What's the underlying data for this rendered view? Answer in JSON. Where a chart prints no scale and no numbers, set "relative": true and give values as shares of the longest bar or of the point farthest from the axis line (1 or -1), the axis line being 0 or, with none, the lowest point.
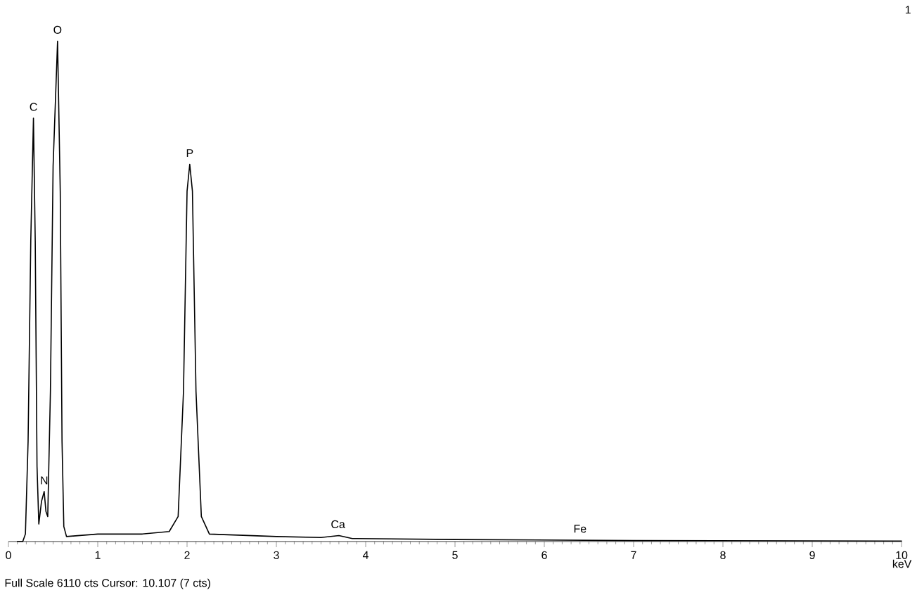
{
  "chart_data": {
    "type": "line",
    "xlabel": "keV",
    "relative": true,
    "grid": false,
    "marker": "none",
    "line_style": "solid",
    "xlim": [
      0,
      10
    ],
    "xticks": [
      0,
      1,
      2,
      3,
      4,
      5,
      6,
      7,
      8,
      9,
      10
    ],
    "x": [
      0.1,
      0.16,
      0.19,
      0.22,
      0.25,
      0.28,
      0.3,
      0.32,
      0.34,
      0.37,
      0.4,
      0.42,
      0.44,
      0.47,
      0.5,
      0.55,
      0.58,
      0.6,
      0.62,
      0.65,
      1.0,
      1.5,
      1.8,
      1.9,
      1.96,
      2.0,
      2.03,
      2.06,
      2.1,
      2.16,
      2.25,
      3.0,
      3.5,
      3.7,
      3.85,
      5.0,
      7.0,
      10.0
    ],
    "series": [
      {
        "color": "#000000",
        "values": [
          0,
          0,
          0.015,
          0.2,
          0.6,
          0.846,
          0.6,
          0.15,
          0.035,
          0.08,
          0.1,
          0.06,
          0.05,
          0.3,
          0.75,
          1,
          0.7,
          0.2,
          0.03,
          0.01,
          0.015,
          0.015,
          0.02,
          0.05,
          0.3,
          0.7,
          0.754,
          0.7,
          0.3,
          0.05,
          0.015,
          0.01,
          0.008,
          0.012,
          0.006,
          0.004,
          0.002,
          0.001
        ]
      }
    ],
    "annotations": [
      {
        "text": "C",
        "x": 0.28,
        "y": 0.846
      },
      {
        "text": "O",
        "x": 0.55,
        "y": 1
      },
      {
        "text": "N",
        "x": 0.4,
        "y": 0.1
      },
      {
        "text": "P",
        "x": 2.03,
        "y": 0.754
      },
      {
        "text": "Ca",
        "x": 3.69,
        "y": 0.012
      },
      {
        "text": "Fe",
        "x": 6.4,
        "y": 0.003
      },
      "Full Scale 6110 cts Cursor: 10.107  (7 cts)",
      "1"
    ]
  }
}
